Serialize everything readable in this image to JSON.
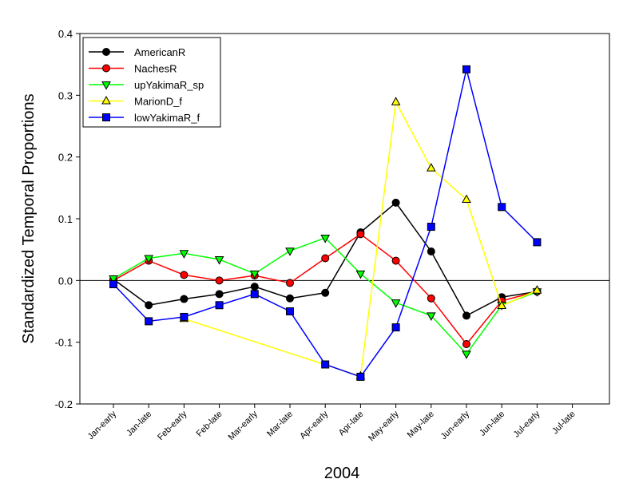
{
  "chart_data": {
    "type": "line",
    "xlabel": "2004",
    "ylabel": "Standardized Temporal Proportions",
    "ylim": [
      -0.2,
      0.4
    ],
    "yticks": [
      -0.2,
      -0.1,
      0.0,
      0.1,
      0.2,
      0.3,
      0.4
    ],
    "ytick_labels": [
      "-0.2",
      "-0.1",
      "0.0",
      "0.1",
      "0.2",
      "0.3",
      "0.4"
    ],
    "categories": [
      "Jan-early",
      "Jan-late",
      "Feb-early",
      "Feb-late",
      "Mar-early",
      "Mar-late",
      "Apr-early",
      "Apr-late",
      "May-early",
      "May-late",
      "Jun-early",
      "Jun-late",
      "Jul-early",
      "Jul-late"
    ],
    "reference_line": 0.0,
    "legend_position": "top-left",
    "grid": false,
    "series": [
      {
        "name": "AmericanR",
        "color": "#000000",
        "marker": "circle",
        "values": [
          0.002,
          -0.04,
          -0.03,
          -0.022,
          -0.01,
          -0.029,
          -0.02,
          0.078,
          0.126,
          0.047,
          -0.057,
          -0.027,
          -0.018,
          null
        ]
      },
      {
        "name": "NachesR",
        "color": "#ff0000",
        "marker": "circle",
        "values": [
          0.0,
          0.032,
          0.009,
          0.0,
          0.008,
          -0.004,
          0.036,
          0.075,
          0.032,
          -0.029,
          -0.103,
          -0.033,
          -0.018,
          null
        ]
      },
      {
        "name": "upYakimaR_sp",
        "color": "#00ff00",
        "marker": "triangle-down",
        "values": [
          0.003,
          0.036,
          0.044,
          0.034,
          0.011,
          0.048,
          0.069,
          0.011,
          -0.036,
          -0.057,
          -0.119,
          -0.04,
          -0.018,
          null
        ]
      },
      {
        "name": "MarionD_f",
        "color": "#ffff00",
        "marker": "triangle-up",
        "values": [
          null,
          null,
          -0.062,
          null,
          null,
          null,
          null,
          -0.155,
          0.289,
          0.182,
          0.131,
          -0.041,
          -0.016,
          null
        ]
      },
      {
        "name": "lowYakimaR_f",
        "color": "#0000ff",
        "marker": "square",
        "values": [
          -0.006,
          -0.066,
          -0.059,
          -0.04,
          -0.022,
          -0.05,
          -0.136,
          -0.156,
          -0.076,
          0.087,
          0.342,
          0.119,
          0.062,
          null
        ]
      }
    ]
  }
}
